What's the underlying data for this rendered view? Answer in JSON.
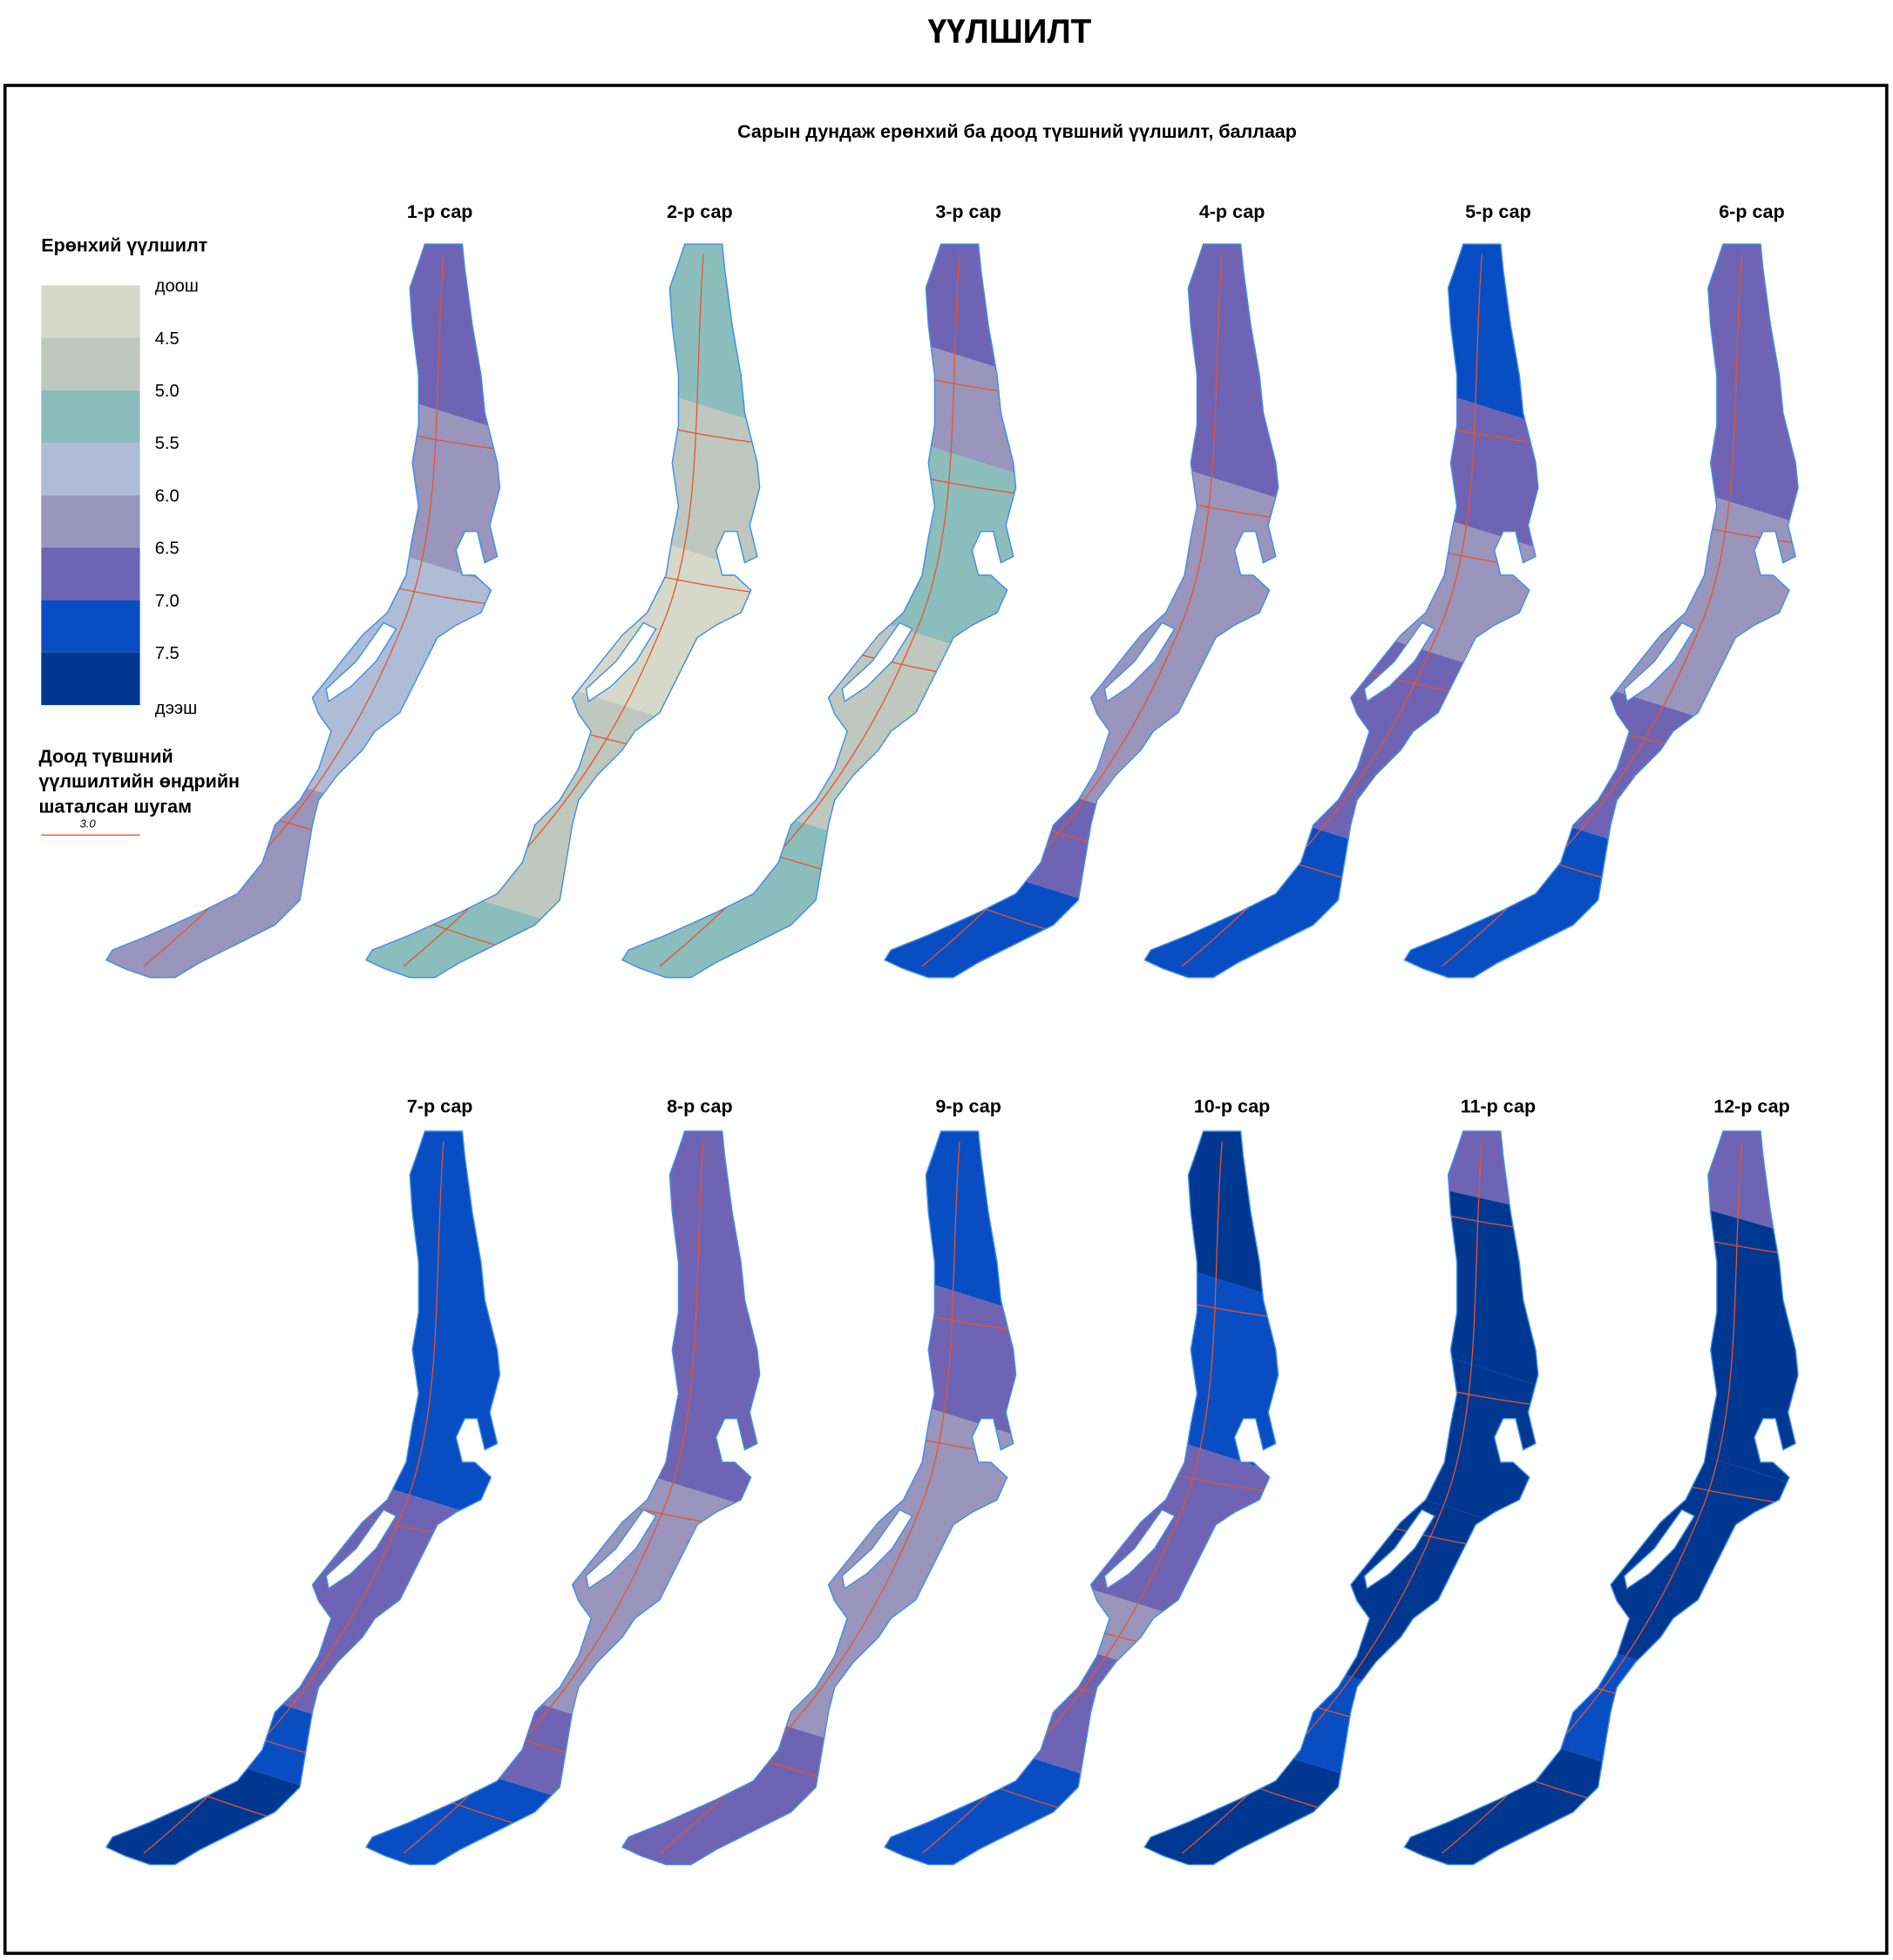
{
  "title": "ҮҮЛШИЛТ",
  "subtitle": "Сарын дундаж ерөнхий ба доод түвшний үүлшилт, баллаар",
  "legend": {
    "title": "Ерөнхий үүлшилт",
    "labels": [
      "доош",
      "4.5",
      "5.0",
      "5.5",
      "6.0",
      "6.5",
      "7.0",
      "7.5",
      "дээш"
    ],
    "colors": [
      "#d6d8c9",
      "#bec8bf",
      "#8bbdbc",
      "#aebcd6",
      "#9a95bc",
      "#6f64b3",
      "#094dc2",
      "#003791"
    ],
    "line_title_1": "Доод түвшний",
    "line_title_2": "үүлшилтийн өндрийн",
    "line_title_3": "шаталсан шугам",
    "line_sample_label": "3.0",
    "line_color": "#e8532a",
    "shore_color": "#3f8ee8"
  },
  "months": [
    {
      "label": "1-р сар",
      "zone_classes": [
        5,
        4,
        3,
        4
      ]
    },
    {
      "label": "2-р сар",
      "zone_classes": [
        2,
        1,
        0,
        1,
        2
      ]
    },
    {
      "label": "3-р сар",
      "zone_classes": [
        5,
        4,
        2,
        1,
        2
      ]
    },
    {
      "label": "4-р сар",
      "zone_classes": [
        5,
        4,
        5,
        6
      ]
    },
    {
      "label": "5-р сар",
      "zone_classes": [
        6,
        5,
        4,
        5,
        6
      ]
    },
    {
      "label": "6-р сар",
      "zone_classes": [
        5,
        4,
        5,
        6
      ]
    },
    {
      "label": "7-р сар",
      "zone_classes": [
        6,
        5,
        6,
        7
      ]
    },
    {
      "label": "8-р сар",
      "zone_classes": [
        5,
        4,
        5,
        6
      ]
    },
    {
      "label": "9-р сар",
      "zone_classes": [
        6,
        5,
        4,
        5
      ]
    },
    {
      "label": "10-р сар",
      "zone_classes": [
        7,
        6,
        5,
        4,
        5,
        6
      ]
    },
    {
      "label": "11-р сар",
      "zone_classes": [
        5,
        7,
        8,
        7,
        6,
        7
      ]
    },
    {
      "label": "12-р сар",
      "zone_classes": [
        5,
        8,
        7,
        6,
        7
      ]
    }
  ]
}
